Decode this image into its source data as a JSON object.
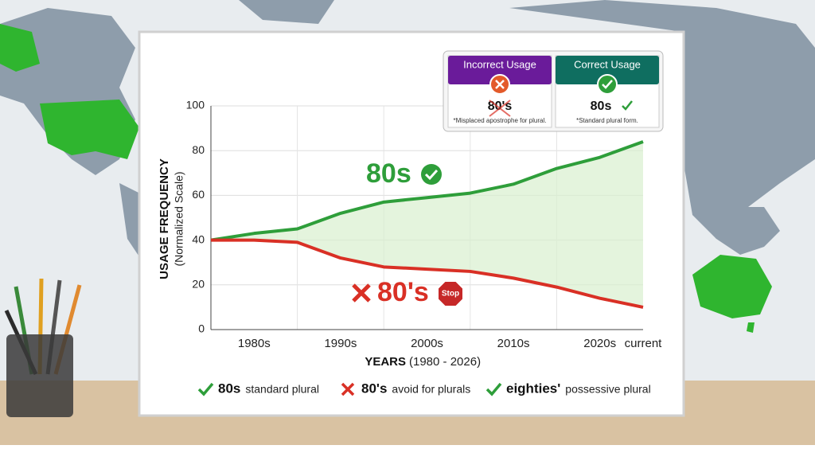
{
  "chart_data": {
    "type": "line",
    "y_label": "USAGE FREQUENCY",
    "y_sublabel": "(Normalized Scale)",
    "x_label": "YEARS",
    "x_sublabel": "(1980 - 2026)",
    "categories": [
      null,
      "1980s",
      null,
      "1990s",
      null,
      "2000s",
      null,
      "2010s",
      null,
      "2020s",
      "current"
    ],
    "series": [
      {
        "name": "80s",
        "color": "#2e9e3a",
        "values": [
          40,
          43,
          45,
          52,
          57,
          59,
          61,
          65,
          72,
          77,
          84
        ]
      },
      {
        "name": "80's",
        "color": "#d93025",
        "values": [
          40,
          40,
          39,
          32,
          28,
          27,
          26,
          23,
          19,
          14,
          10
        ]
      }
    ],
    "ylim": [
      0,
      100
    ],
    "yticks": [
      0,
      20,
      40,
      60,
      80,
      100
    ],
    "grid": true,
    "stop_sign": "Stop",
    "legend_items": [
      {
        "term": "80s",
        "desc": "standard plural",
        "color": "#2e9e3a"
      },
      {
        "term": "80's",
        "desc": "avoid for plurals",
        "color": "#d93025"
      },
      {
        "term": "eighties'",
        "desc": "possessive plural",
        "color": "#2e9e3a"
      }
    ],
    "callout": {
      "incorrect": {
        "title": "Incorrect Usage",
        "term": "80's",
        "note": "*Misplaced apostrophe for plural."
      },
      "correct": {
        "title": "Correct Usage",
        "term": "80s",
        "note": "*Standard plural form."
      }
    }
  }
}
